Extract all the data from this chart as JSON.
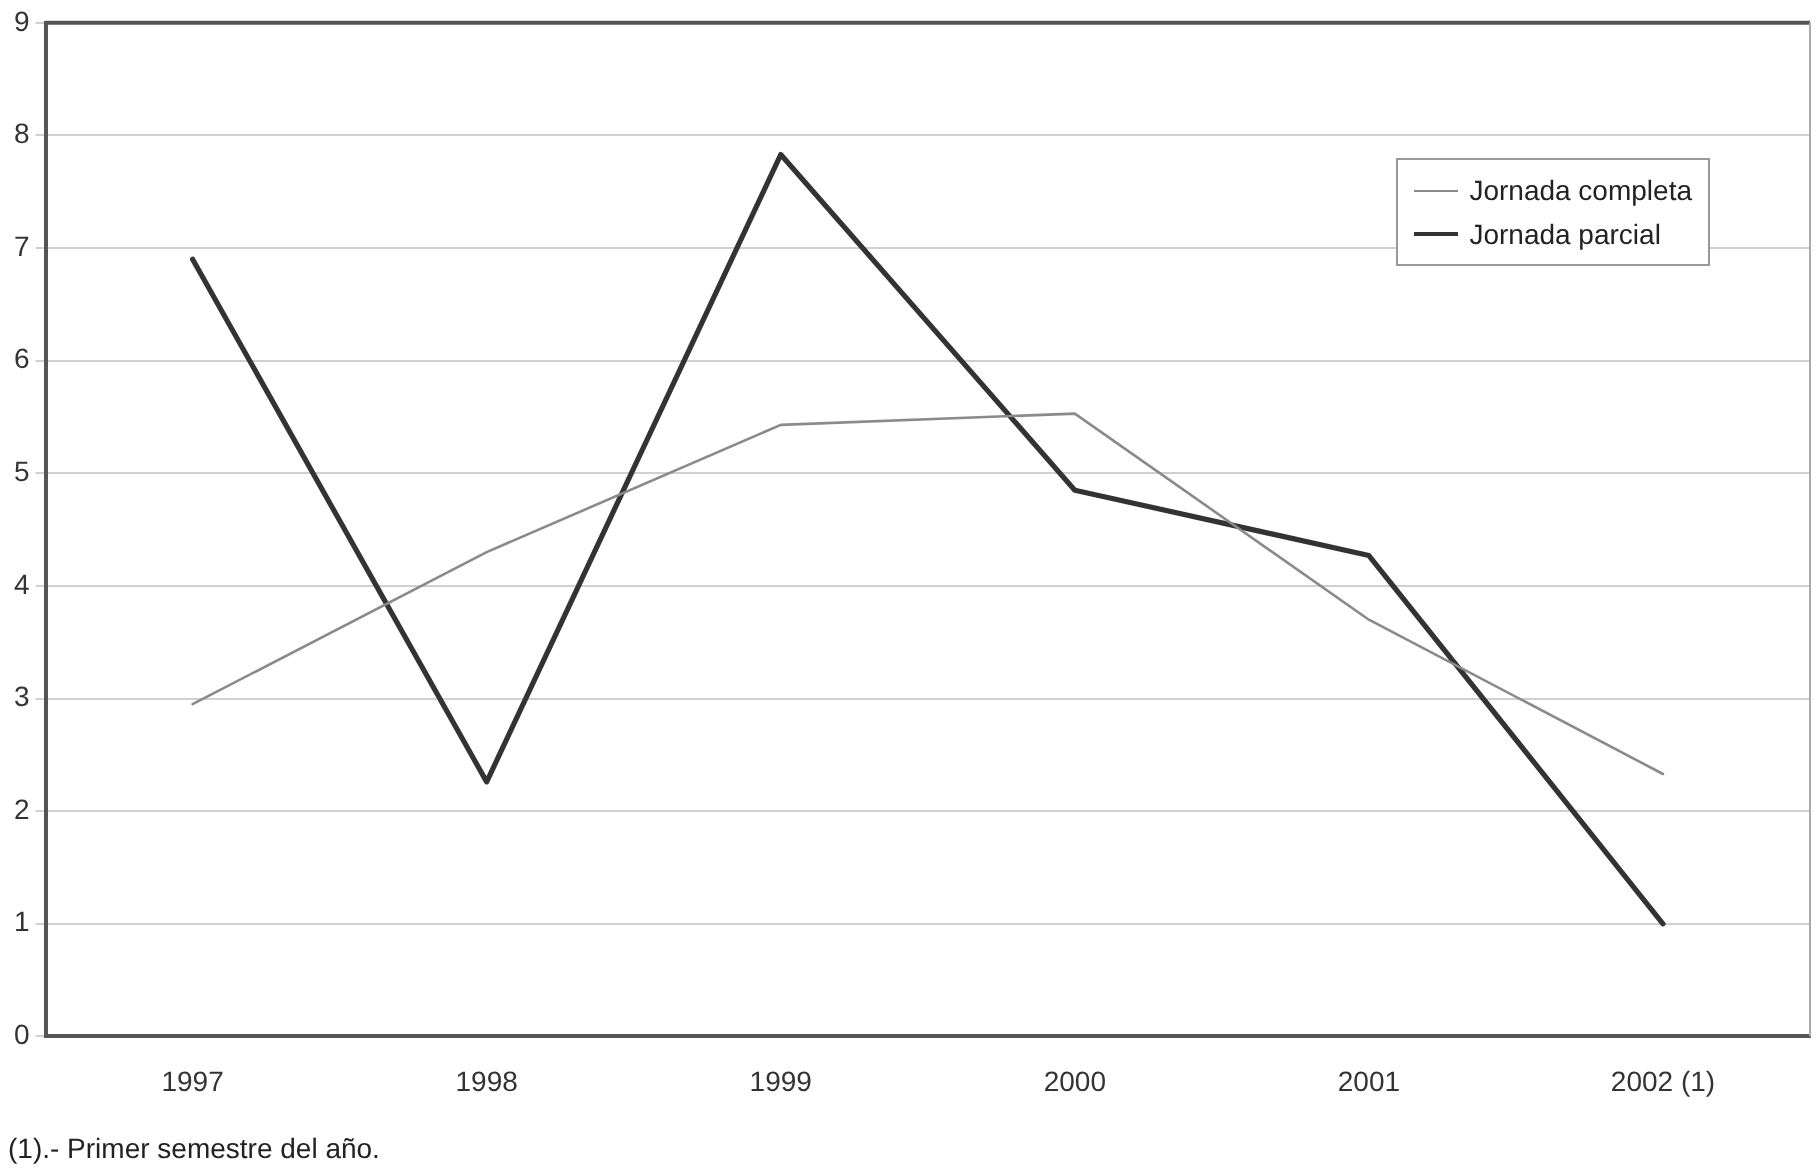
{
  "chart_data": {
    "type": "line",
    "categories": [
      "1997",
      "1998",
      "1999",
      "2000",
      "2001",
      "2002 (1)"
    ],
    "series": [
      {
        "name": "Jornada completa",
        "color": "#8a8a8a",
        "values": [
          2.95,
          4.3,
          5.43,
          5.53,
          3.7,
          2.33
        ]
      },
      {
        "name": "Jornada parcial",
        "color": "#333333",
        "values": [
          6.9,
          2.26,
          7.83,
          4.85,
          4.27,
          1.0
        ]
      }
    ],
    "ylim": [
      0,
      9
    ],
    "yticks": [
      0,
      1,
      2,
      3,
      4,
      5,
      6,
      7,
      8,
      9
    ],
    "grid": "y",
    "legend": "top right",
    "marker": "none",
    "line_style": "solid",
    "annotations": [
      "(1).- Primer semestre del año."
    ]
  }
}
